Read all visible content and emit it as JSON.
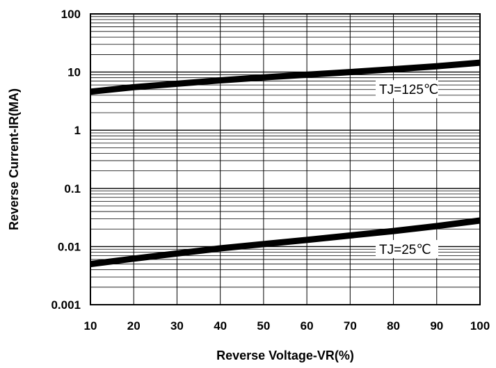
{
  "chart_data": {
    "type": "line",
    "xlabel": "Reverse Voltage-VR(%)",
    "ylabel": "Reverse Current-IR(MA)",
    "x_ticks": [
      "10",
      "20",
      "30",
      "40",
      "50",
      "60",
      "70",
      "80",
      "90",
      "100"
    ],
    "y_ticks": [
      "0.001",
      "0.01",
      "0.1",
      "1",
      "10",
      "100"
    ],
    "xlim": [
      10,
      100
    ],
    "ylim": [
      0.001,
      100
    ],
    "y_scale": "log",
    "grid": true,
    "series": [
      {
        "name": "TJ=125℃",
        "x": [
          10,
          20,
          30,
          40,
          50,
          60,
          70,
          80,
          90,
          100
        ],
        "y": [
          4.6,
          5.5,
          6.3,
          7.2,
          8.1,
          9.0,
          10.0,
          11.2,
          12.6,
          14.5
        ]
      },
      {
        "name": "TJ=25℃",
        "x": [
          10,
          20,
          30,
          40,
          50,
          60,
          70,
          80,
          90,
          100
        ],
        "y": [
          0.005,
          0.0062,
          0.0076,
          0.0093,
          0.011,
          0.013,
          0.0155,
          0.0185,
          0.0225,
          0.028
        ]
      }
    ]
  }
}
